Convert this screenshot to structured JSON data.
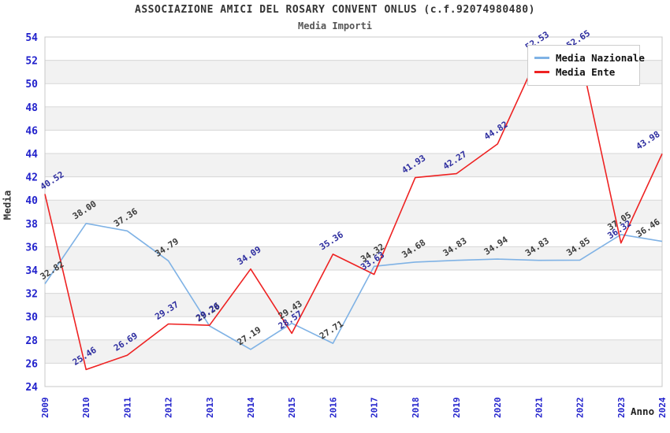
{
  "header": {
    "title": "ASSOCIAZIONE AMICI DEL ROSARY CONVENT ONLUS (c.f.92074980480)",
    "subtitle": "Media Importi"
  },
  "axes": {
    "y_title": "Media",
    "x_title": "Anno"
  },
  "chart_data": {
    "type": "line",
    "title": "ASSOCIAZIONE AMICI DEL ROSARY CONVENT ONLUS (c.f.92074980480)",
    "subtitle": "Media Importi",
    "xlabel": "Anno",
    "ylabel": "Media",
    "ylim": [
      24,
      54
    ],
    "ytick_step": 2,
    "grid": "horizontal-bands",
    "legend_position": "top-right",
    "band_colors": [
      "#ffffff",
      "#f2f2f2"
    ],
    "gridline_color": "#d7d7d7",
    "border_color": "#c8c8c8",
    "axis_tick_color": "#2222cc",
    "x": [
      "2009",
      "2010",
      "2011",
      "2012",
      "2013",
      "2014",
      "2015",
      "2016",
      "2017",
      "2018",
      "2019",
      "2020",
      "2021",
      "2022",
      "2023",
      "2024"
    ],
    "series": [
      {
        "name": "Media Nazionale",
        "color": "#7fb2e5",
        "label_color": "#3c3c3c",
        "values": [
          32.82,
          38.0,
          37.36,
          34.79,
          29.2,
          27.19,
          29.43,
          27.71,
          34.32,
          34.68,
          34.83,
          34.94,
          34.83,
          34.85,
          37.05,
          36.46
        ]
      },
      {
        "name": "Media Ente",
        "color": "#ee2222",
        "label_color": "#2d2d9f",
        "values": [
          40.52,
          25.46,
          26.69,
          29.37,
          29.26,
          34.09,
          28.57,
          35.36,
          33.63,
          41.93,
          42.27,
          44.82,
          52.53,
          52.65,
          36.32,
          43.98
        ]
      }
    ]
  }
}
